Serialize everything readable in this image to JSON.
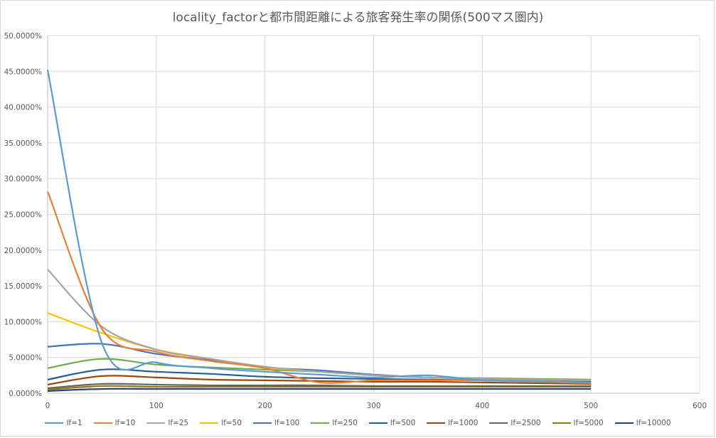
{
  "chart_data": {
    "type": "line",
    "title": "locality_factorと都市間距離による旅客発生率の関係(500マス圏内)",
    "xlabel": "",
    "ylabel": "",
    "xlim": [
      0,
      600
    ],
    "ylim": [
      0,
      0.5
    ],
    "x_ticks": [
      "0",
      "100",
      "200",
      "300",
      "400",
      "500",
      "600"
    ],
    "y_ticks": [
      "0.0000%",
      "5.0000%",
      "10.0000%",
      "15.0000%",
      "20.0000%",
      "25.0000%",
      "30.0000%",
      "35.0000%",
      "40.0000%",
      "45.0000%",
      "50.0000%"
    ],
    "grid": true,
    "legend_position": "bottom",
    "x": [
      0,
      50,
      100,
      150,
      200,
      250,
      300,
      350,
      400,
      450,
      500
    ],
    "series": [
      {
        "name": "lf=1",
        "color": "#5B9BD5",
        "values": [
          45.2,
          7.0,
          4.3,
          3.5,
          3.0,
          2.6,
          2.2,
          2.5,
          1.8,
          1.7,
          1.5
        ]
      },
      {
        "name": "lf=10",
        "color": "#ED7D31",
        "values": [
          28.2,
          9.0,
          5.8,
          4.5,
          3.5,
          1.5,
          1.8,
          1.8,
          1.8,
          1.6,
          1.4
        ]
      },
      {
        "name": "lf=25",
        "color": "#A5A5A5",
        "values": [
          17.3,
          9.3,
          6.1,
          4.8,
          3.7,
          3.0,
          2.5,
          2.2,
          2.0,
          1.9,
          1.8
        ]
      },
      {
        "name": "lf=50",
        "color": "#FFC000",
        "values": [
          11.2,
          8.4,
          6.1,
          4.8,
          3.6,
          3.0,
          2.5,
          2.2,
          2.0,
          1.9,
          1.8
        ]
      },
      {
        "name": "lf=100",
        "color": "#4472C4",
        "values": [
          6.5,
          6.9,
          5.5,
          4.6,
          3.6,
          3.2,
          2.6,
          2.2,
          2.0,
          1.9,
          1.8
        ]
      },
      {
        "name": "lf=250",
        "color": "#70AD47",
        "values": [
          3.5,
          4.8,
          4.0,
          3.6,
          3.3,
          3.0,
          2.5,
          2.2,
          2.1,
          2.0,
          1.9
        ]
      },
      {
        "name": "lf=500",
        "color": "#255E91",
        "values": [
          1.9,
          3.3,
          3.0,
          2.7,
          2.3,
          2.1,
          2.0,
          1.9,
          1.8,
          1.7,
          1.6
        ]
      },
      {
        "name": "lf=1000",
        "color": "#9E480E",
        "values": [
          1.2,
          2.4,
          2.2,
          1.9,
          1.8,
          1.7,
          1.6,
          1.6,
          1.5,
          1.4,
          1.3
        ]
      },
      {
        "name": "lf=2500",
        "color": "#636363",
        "values": [
          0.7,
          1.3,
          1.2,
          1.1,
          1.1,
          1.1,
          1.0,
          1.0,
          1.0,
          1.0,
          1.0
        ]
      },
      {
        "name": "lf=5000",
        "color": "#997300",
        "values": [
          0.5,
          1.0,
          0.9,
          0.9,
          0.9,
          0.9,
          0.9,
          0.9,
          0.9,
          0.9,
          0.9
        ]
      },
      {
        "name": "lf=10000",
        "color": "#264478",
        "values": [
          0.3,
          0.6,
          0.6,
          0.6,
          0.6,
          0.6,
          0.6,
          0.6,
          0.6,
          0.6,
          0.6
        ]
      }
    ]
  }
}
